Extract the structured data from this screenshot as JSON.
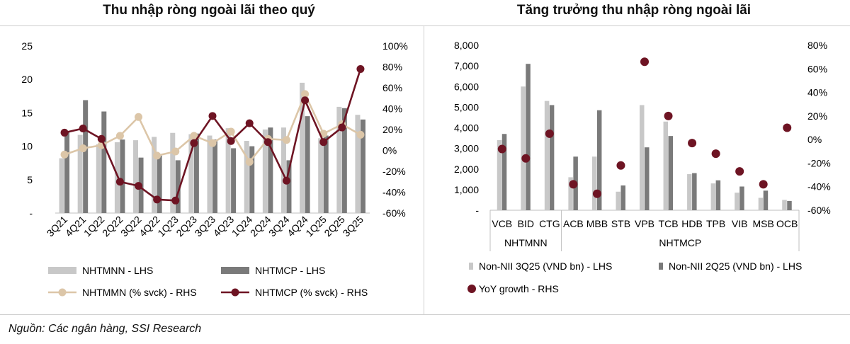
{
  "source": "Nguồn: Các ngân hàng, SSI Research",
  "colors": {
    "nhtmnn_bar": "#c8c8c8",
    "nhtmcp_bar": "#7a7a7a",
    "nhtmnn_line": "#dcc6a8",
    "nhtmcp_line": "#6e1423",
    "axis": "#bfbfbf"
  },
  "chart_data": [
    {
      "type": "bar",
      "title": "Thu nhập ròng ngoài lãi theo quý",
      "categories": [
        "3Q21",
        "4Q21",
        "1Q22",
        "2Q22",
        "3Q22",
        "4Q22",
        "1Q23",
        "2Q23",
        "3Q23",
        "4Q23",
        "1Q24",
        "2Q24",
        "3Q24",
        "4Q24",
        "1Q25",
        "2Q25",
        "3Q25"
      ],
      "y_left": {
        "min": 0,
        "max": 25,
        "ticks": [
          "-",
          "5",
          "10",
          "15",
          "20",
          "25"
        ]
      },
      "y_right": {
        "min": -60,
        "max": 100,
        "ticks": [
          "-60%",
          "-40%",
          "-20%",
          "0%",
          "20%",
          "40%",
          "60%",
          "80%",
          "100%"
        ]
      },
      "series": [
        {
          "name": "NHTMNN - LHS",
          "kind": "bar",
          "axis": "left",
          "values": [
            8.2,
            11.7,
            10.3,
            10.6,
            10.9,
            11.4,
            12.0,
            11.8,
            11.6,
            12.7,
            10.8,
            12.5,
            12.8,
            19.5,
            11.2,
            15.9,
            14.7
          ]
        },
        {
          "name": "NHTMCP - LHS",
          "kind": "bar",
          "axis": "left",
          "values": [
            12.2,
            16.9,
            15.2,
            11.0,
            8.3,
            8.6,
            7.9,
            11.9,
            11.0,
            9.7,
            10.0,
            12.8,
            7.9,
            14.5,
            11.6,
            15.7,
            14.0
          ]
        },
        {
          "name": "NHTMMN (% svck) - RHS",
          "kind": "line",
          "axis": "right",
          "values": [
            -4,
            2,
            5,
            14,
            32,
            -5,
            -1,
            14,
            7,
            18,
            -11,
            11,
            10,
            54,
            16,
            25,
            15
          ]
        },
        {
          "name": "NHTMCP (% svck) - RHS",
          "kind": "line",
          "axis": "right",
          "values": [
            17,
            21,
            11,
            -30,
            -34,
            -47,
            -48,
            7,
            33,
            9,
            26,
            8,
            -29,
            48,
            8,
            22,
            78
          ]
        }
      ]
    },
    {
      "type": "bar",
      "title": "Tăng trưởng thu nhập ròng ngoài lãi",
      "categories": [
        "VCB",
        "BID",
        "CTG",
        "ACB",
        "MBB",
        "STB",
        "VPB",
        "TCB",
        "HDB",
        "TPB",
        "VIB",
        "MSB",
        "OCB"
      ],
      "groups": [
        {
          "label": "NHTMNN",
          "members": [
            "VCB",
            "BID",
            "CTG"
          ]
        },
        {
          "label": "NHTMCP",
          "members": [
            "ACB",
            "MBB",
            "STB",
            "VPB",
            "TCB",
            "HDB",
            "TPB",
            "VIB",
            "MSB",
            "OCB"
          ]
        }
      ],
      "y_left": {
        "min": 0,
        "max": 8000,
        "ticks": [
          "-",
          "1,000",
          "2,000",
          "3,000",
          "4,000",
          "5,000",
          "6,000",
          "7,000",
          "8,000"
        ]
      },
      "y_right": {
        "min": -60,
        "max": 80,
        "ticks": [
          "-60%",
          "-40%",
          "-20%",
          "0%",
          "20%",
          "40%",
          "60%",
          "80%"
        ]
      },
      "series": [
        {
          "name": "Non-NII 3Q25 (VND bn) - LHS",
          "kind": "bar",
          "axis": "left",
          "values": [
            3400,
            6000,
            5300,
            1600,
            2600,
            900,
            5100,
            4300,
            1750,
            1300,
            850,
            600,
            500
          ]
        },
        {
          "name": "Non-NII 2Q25 (VND bn) - LHS",
          "kind": "bar",
          "axis": "left",
          "values": [
            3700,
            7100,
            5100,
            2600,
            4850,
            1200,
            3050,
            3600,
            1800,
            1450,
            1150,
            950,
            450
          ]
        },
        {
          "name": "YoY growth - RHS",
          "kind": "scatter",
          "axis": "right",
          "values": [
            -8,
            -16,
            5,
            -38,
            -46,
            -22,
            66,
            20,
            -3,
            -12,
            -27,
            -38,
            10
          ]
        }
      ]
    }
  ]
}
